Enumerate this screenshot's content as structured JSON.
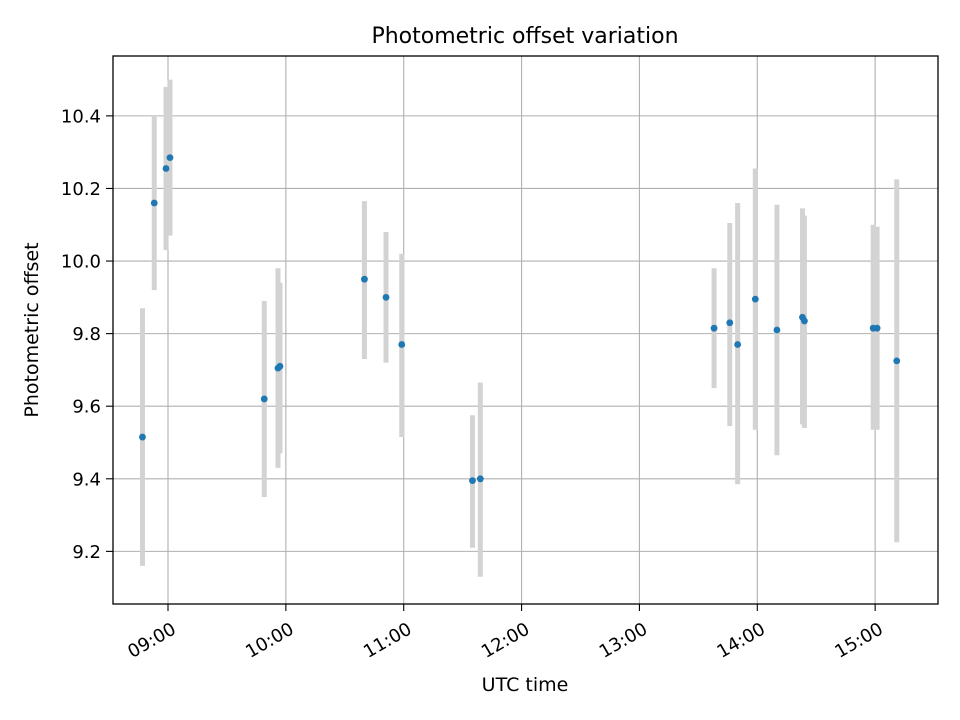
{
  "chart_data": {
    "type": "scatter",
    "title": "Photometric offset variation",
    "xlabel": "UTC time",
    "ylabel": "Photometric offset",
    "xlim": [
      "08:32",
      "15:32"
    ],
    "ylim": [
      9.055,
      10.565
    ],
    "grid": true,
    "x_ticks": [
      {
        "value": "09:00",
        "label": "09:00"
      },
      {
        "value": "10:00",
        "label": "10:00"
      },
      {
        "value": "11:00",
        "label": "11:00"
      },
      {
        "value": "12:00",
        "label": "12:00"
      },
      {
        "value": "13:00",
        "label": "13:00"
      },
      {
        "value": "14:00",
        "label": "14:00"
      },
      {
        "value": "15:00",
        "label": "15:00"
      }
    ],
    "y_ticks": [
      {
        "value": 9.2,
        "label": "9.2"
      },
      {
        "value": 9.4,
        "label": "9.4"
      },
      {
        "value": 9.6,
        "label": "9.6"
      },
      {
        "value": 9.8,
        "label": "9.8"
      },
      {
        "value": 10.0,
        "label": "10.0"
      },
      {
        "value": 10.2,
        "label": "10.2"
      },
      {
        "value": 10.4,
        "label": "10.4"
      }
    ],
    "colors": {
      "marker": "#1f77b4",
      "errorbar": "#d3d3d3",
      "grid": "#b0b0b0"
    },
    "points": [
      {
        "x": "08:47",
        "y": 9.515,
        "lo": 9.16,
        "hi": 9.87
      },
      {
        "x": "08:53",
        "y": 10.16,
        "lo": 9.92,
        "hi": 10.4
      },
      {
        "x": "08:59",
        "y": 10.255,
        "lo": 10.03,
        "hi": 10.48
      },
      {
        "x": "09:01",
        "y": 10.285,
        "lo": 10.07,
        "hi": 10.5
      },
      {
        "x": "09:49",
        "y": 9.62,
        "lo": 9.35,
        "hi": 9.89
      },
      {
        "x": "09:56",
        "y": 9.705,
        "lo": 9.43,
        "hi": 9.98
      },
      {
        "x": "09:57",
        "y": 9.71,
        "lo": 9.47,
        "hi": 9.94
      },
      {
        "x": "10:40",
        "y": 9.95,
        "lo": 9.73,
        "hi": 10.165
      },
      {
        "x": "10:51",
        "y": 9.9,
        "lo": 9.72,
        "hi": 10.08
      },
      {
        "x": "10:59",
        "y": 9.77,
        "lo": 9.515,
        "hi": 10.02
      },
      {
        "x": "11:35",
        "y": 9.395,
        "lo": 9.21,
        "hi": 9.575
      },
      {
        "x": "11:39",
        "y": 9.4,
        "lo": 9.13,
        "hi": 9.665
      },
      {
        "x": "13:38",
        "y": 9.815,
        "lo": 9.65,
        "hi": 9.98
      },
      {
        "x": "13:46",
        "y": 9.83,
        "lo": 9.545,
        "hi": 10.105
      },
      {
        "x": "13:50",
        "y": 9.77,
        "lo": 9.385,
        "hi": 10.16
      },
      {
        "x": "13:59",
        "y": 9.895,
        "lo": 9.535,
        "hi": 10.255
      },
      {
        "x": "14:10",
        "y": 9.81,
        "lo": 9.465,
        "hi": 10.155
      },
      {
        "x": "14:23",
        "y": 9.845,
        "lo": 9.55,
        "hi": 10.145
      },
      {
        "x": "14:24",
        "y": 9.835,
        "lo": 9.54,
        "hi": 10.125
      },
      {
        "x": "14:59",
        "y": 9.815,
        "lo": 9.535,
        "hi": 10.1
      },
      {
        "x": "15:01",
        "y": 9.815,
        "lo": 9.535,
        "hi": 10.095
      },
      {
        "x": "15:11",
        "y": 9.725,
        "lo": 9.225,
        "hi": 10.225
      }
    ]
  }
}
